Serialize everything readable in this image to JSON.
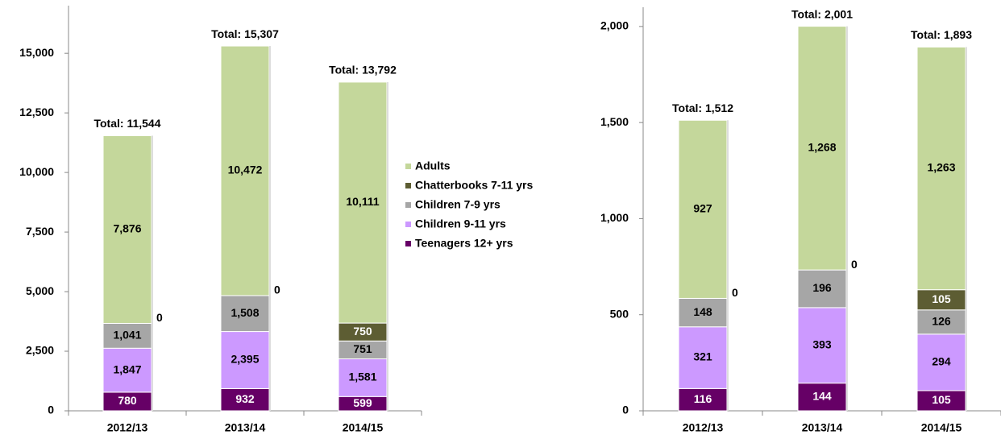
{
  "chart_data": [
    {
      "type": "stacked_bar",
      "categories": [
        "2012/13",
        "2013/14",
        "2014/15"
      ],
      "series": [
        {
          "name": "Adults",
          "color": "#c4d79b",
          "values": [
            7876,
            10472,
            10111
          ],
          "value_labels": [
            "7,876",
            "10,472",
            "10,111"
          ]
        },
        {
          "name": "Chatterbooks 7-11 yrs",
          "color": "#5d5d33",
          "values": [
            0,
            0,
            750
          ],
          "value_labels": [
            "0",
            "0",
            "750"
          ]
        },
        {
          "name": "Children 7-9 yrs",
          "color": "#a6a6a6",
          "values": [
            1041,
            1508,
            751
          ],
          "value_labels": [
            "1,041",
            "1,508",
            "751"
          ]
        },
        {
          "name": "Children 9-11 yrs",
          "color": "#cc99ff",
          "values": [
            1847,
            2395,
            1581
          ],
          "value_labels": [
            "1,847",
            "2,395",
            "1,581"
          ]
        },
        {
          "name": "Teenagers 12+ yrs",
          "color": "#660066",
          "values": [
            780,
            932,
            599
          ],
          "value_labels": [
            "780",
            "932",
            "599"
          ]
        }
      ],
      "total_labels": [
        "Total: 11,544",
        "Total: 15,307",
        "Total: 13,792"
      ],
      "ylim": [
        0,
        17000
      ],
      "yticks": [
        0,
        {
          "value": 2500,
          "label": "2,500"
        },
        {
          "value": 5000,
          "label": "5,000"
        },
        {
          "value": 7500,
          "label": "7,500"
        },
        {
          "value": 10000,
          "label": "10,000"
        },
        {
          "value": 12500,
          "label": "12,500"
        },
        {
          "value": 15000,
          "label": "15,000"
        }
      ]
    },
    {
      "type": "stacked_bar",
      "categories": [
        "2012/13",
        "2013/14",
        "2014/15"
      ],
      "series": [
        {
          "color": "#c4d79b",
          "values": [
            927,
            1268,
            1263
          ],
          "value_labels": [
            "927",
            "1,268",
            "1,263"
          ]
        },
        {
          "color": "#5d5d33",
          "values": [
            0,
            0,
            105
          ],
          "value_labels": [
            "0",
            "0",
            "105"
          ]
        },
        {
          "color": "#a6a6a6",
          "values": [
            148,
            196,
            126
          ],
          "value_labels": [
            "148",
            "196",
            "126"
          ]
        },
        {
          "color": "#cc99ff",
          "values": [
            321,
            393,
            294
          ],
          "value_labels": [
            "321",
            "393",
            "294"
          ]
        },
        {
          "color": "#660066",
          "values": [
            116,
            144,
            105
          ],
          "value_labels": [
            "116",
            "144",
            "105"
          ]
        }
      ],
      "total_labels": [
        "Total: 1,512",
        "Total: 2,001",
        "Total: 1,893"
      ],
      "ylim": [
        0,
        2100
      ],
      "yticks": [
        0,
        500,
        {
          "value": 1000,
          "label": "1,000"
        },
        {
          "value": 1500,
          "label": "1,500"
        },
        {
          "value": 2000,
          "label": "2,000"
        }
      ]
    }
  ]
}
